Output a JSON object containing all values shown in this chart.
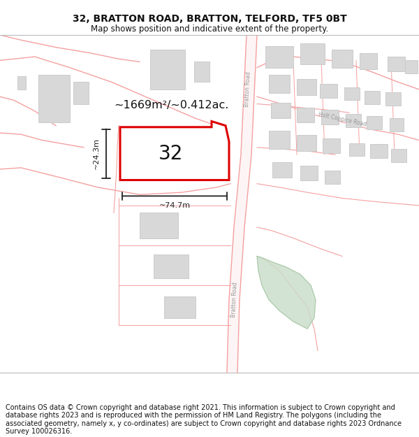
{
  "title": "32, BRATTON ROAD, BRATTON, TELFORD, TF5 0BT",
  "subtitle": "Map shows position and indicative extent of the property.",
  "footer": "Contains OS data © Crown copyright and database right 2021. This information is subject to Crown copyright and database rights 2023 and is reproduced with the permission of HM Land Registry. The polygons (including the associated geometry, namely x, y co-ordinates) are subject to Crown copyright and database rights 2023 Ordnance Survey 100026316.",
  "area_label": "~1669m²/~0.412ac.",
  "width_label": "~74.7m",
  "height_label": "~24.3m",
  "plot_number": "32",
  "road_color": "#f5a0a0",
  "road_fill": "#fdf5f5",
  "plot_border": "#dd0000",
  "building_fill": "#d8d8d8",
  "building_edge": "#cccccc",
  "dim_color": "#222222",
  "green_fill": "#c8ddc8",
  "title_fontsize": 10,
  "subtitle_fontsize": 8.5,
  "footer_fontsize": 7.0
}
